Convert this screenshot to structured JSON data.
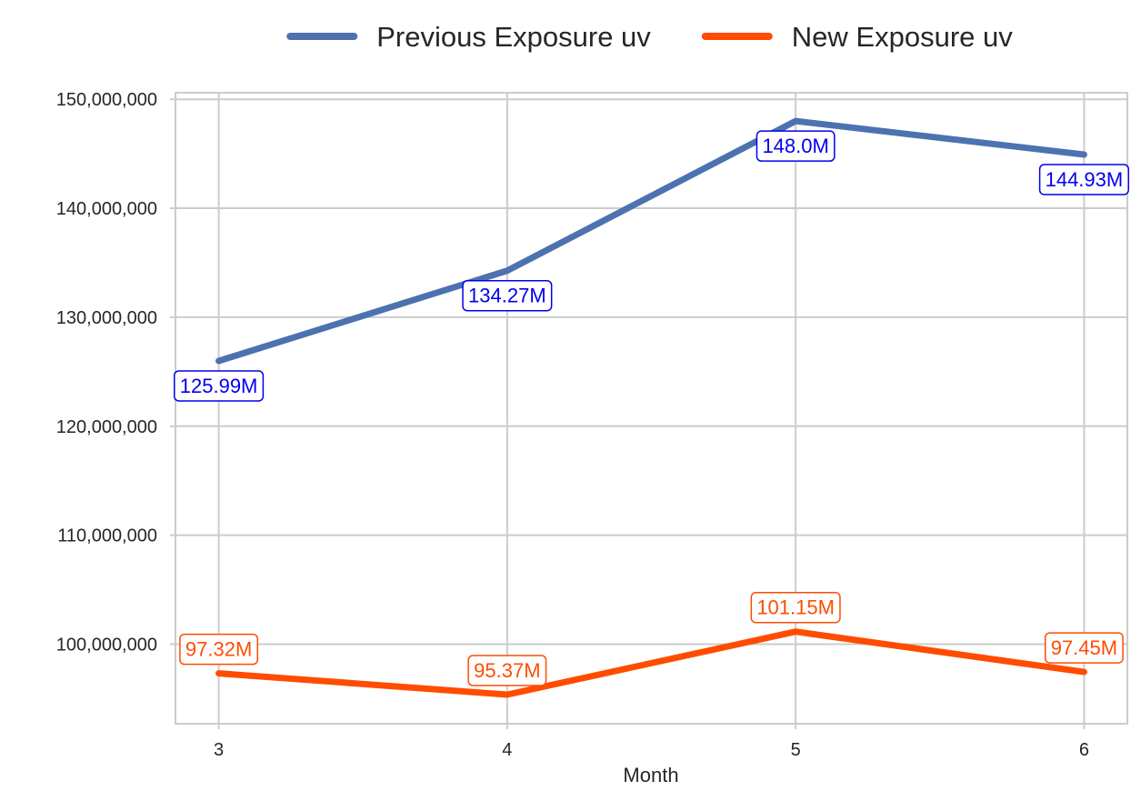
{
  "chart_data": {
    "type": "line",
    "title": "",
    "xlabel": "Month",
    "ylabel": "",
    "x": [
      3,
      4,
      5,
      6
    ],
    "xlim": [
      2.85,
      6.15
    ],
    "ylim": [
      92700000,
      150600000
    ],
    "yticks": [
      100000000,
      110000000,
      120000000,
      130000000,
      140000000,
      150000000
    ],
    "ytick_labels": [
      "100,000,000",
      "110,000,000",
      "120,000,000",
      "130,000,000",
      "140,000,000",
      "150,000,000"
    ],
    "xtick_labels": [
      "3",
      "4",
      "5",
      "6"
    ],
    "grid": true,
    "legend_position": "top-center",
    "series": [
      {
        "name": "Previous Exposure uv",
        "values": [
          125990000,
          134270000,
          148000000,
          144930000
        ],
        "labels": [
          "125.99M",
          "134.27M",
          "148.0M",
          "144.93M"
        ],
        "label_position": "below",
        "color": "#4c72b0",
        "label_color": "#0000ee"
      },
      {
        "name": "New Exposure uv",
        "values": [
          97320000,
          95370000,
          101150000,
          97450000
        ],
        "labels": [
          "97.32M",
          "95.37M",
          "101.15M",
          "97.45M"
        ],
        "label_position": "above",
        "color": "#ff4c00",
        "label_color": "#ff4c00"
      }
    ]
  }
}
